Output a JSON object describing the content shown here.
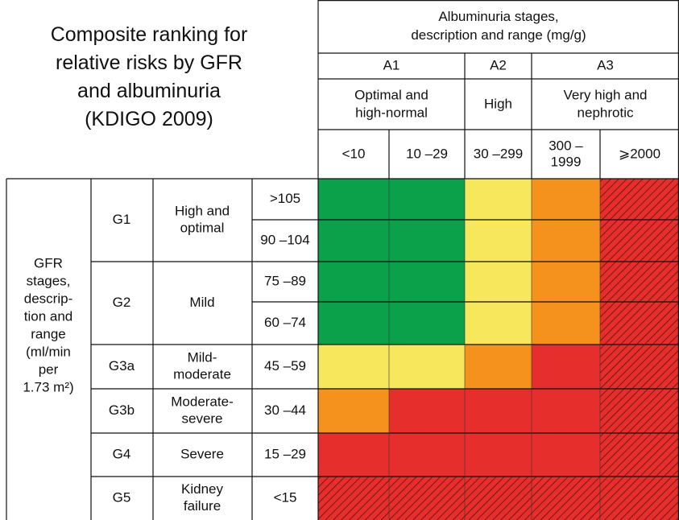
{
  "title": [
    "Composite ranking for",
    "relative risks by GFR",
    "and albuminuria",
    "(KDIGO 2009)"
  ],
  "albuminuria_header": [
    "Albuminuria stages,",
    "description and range (mg/g)"
  ],
  "albuminuria_stages": [
    {
      "label": "A1",
      "description": [
        "Optimal and",
        "high-normal"
      ],
      "ranges": [
        [
          "<10"
        ],
        [
          "10 –29"
        ]
      ]
    },
    {
      "label": "A2",
      "description": [
        "High"
      ],
      "ranges": [
        [
          "30 –299"
        ]
      ]
    },
    {
      "label": "A3",
      "description": [
        "Very high and",
        "nephrotic"
      ],
      "ranges": [
        [
          "300 –",
          "1999"
        ],
        [
          "⩾2000"
        ]
      ]
    }
  ],
  "gfr_header": [
    "GFR",
    "stages,",
    "descrip-",
    "tion and",
    "range",
    "(ml/min",
    "per",
    "1.73 m²)"
  ],
  "gfr_stages": [
    {
      "label": "G1",
      "description": [
        "High and",
        "optimal"
      ],
      "ranges": [
        ">105",
        "90 –104"
      ]
    },
    {
      "label": "G2",
      "description": [
        "Mild"
      ],
      "ranges": [
        "75 –89",
        "60 –74"
      ]
    },
    {
      "label": "G3a",
      "description": [
        "Mild-",
        "moderate"
      ],
      "ranges": [
        "45 –59"
      ]
    },
    {
      "label": "G3b",
      "description": [
        "Moderate-",
        "severe"
      ],
      "ranges": [
        "30 –44"
      ]
    },
    {
      "label": "G4",
      "description": [
        "Severe"
      ],
      "ranges": [
        "15 –29"
      ]
    },
    {
      "label": "G5",
      "description": [
        "Kidney",
        "failure"
      ],
      "ranges": [
        "<15"
      ]
    }
  ],
  "cells": [
    [
      "#0ba14b",
      "#0ba14b",
      "#f6e75d",
      "#f5921e",
      "hatched"
    ],
    [
      "#0ba14b",
      "#0ba14b",
      "#f6e75d",
      "#f5921e",
      "hatched"
    ],
    [
      "#0ba14b",
      "#0ba14b",
      "#f6e75d",
      "#f5921e",
      "hatched"
    ],
    [
      "#0ba14b",
      "#0ba14b",
      "#f6e75d",
      "#f5921e",
      "hatched"
    ],
    [
      "#f6e75d",
      "#f6e75d",
      "#f5921e",
      "#e62f2d",
      "hatched"
    ],
    [
      "#f5921e",
      "#e62f2d",
      "#e62f2d",
      "#e62f2d",
      "hatched"
    ],
    [
      "#e62f2d",
      "#e62f2d",
      "#e62f2d",
      "#e62f2d",
      "hatched"
    ],
    [
      "hatched",
      "hatched",
      "hatched",
      "hatched",
      "hatched"
    ]
  ]
}
